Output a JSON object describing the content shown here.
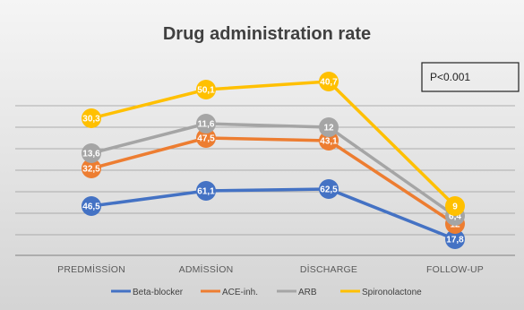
{
  "chart_data": {
    "type": "line",
    "title": "Drug administration rate",
    "categories": [
      "PREDMİSSİON",
      "ADMİSSİON",
      "DİSCHARGE",
      "FOLLOW-UP"
    ],
    "series": [
      {
        "name": "Beta-blocker",
        "color": "#4472c4",
        "values": [
          46.5,
          61.1,
          62.5,
          17.8
        ],
        "labels": [
          "46,5",
          "61,1",
          "62,5",
          "17,8"
        ]
      },
      {
        "name": "ACE-inh.",
        "color": "#ed7d31",
        "values": [
          32.5,
          47.5,
          43.1,
          12
        ],
        "labels": [
          "32,5",
          "47,5",
          "43,1",
          "12"
        ]
      },
      {
        "name": "ARB",
        "color": "#a5a5a5",
        "values": [
          13.6,
          11.6,
          12,
          6.4
        ],
        "labels": [
          "13,6",
          "11,6",
          "12",
          "6,4"
        ]
      },
      {
        "name": "Spironolactone",
        "color": "#ffc000",
        "values": [
          30.3,
          50.1,
          40.7,
          9
        ],
        "labels": [
          "30,3",
          "50,1",
          "40,7",
          "9"
        ]
      }
    ],
    "annotation": "P<0.001",
    "grid": true,
    "legend_position": "bottom",
    "colors": {
      "background": "#ffffff",
      "plot_gradient_top": "#f5f5f5",
      "plot_gradient_bottom": "#d4d4d4",
      "gridline": "#9a9a9a",
      "axis": "#808080"
    }
  }
}
